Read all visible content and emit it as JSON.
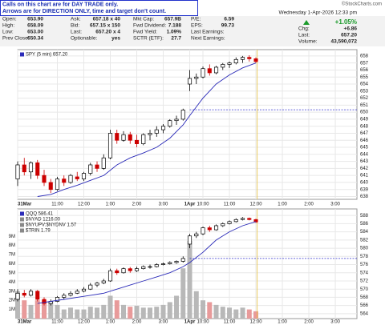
{
  "header": {
    "notice": [
      "Calls on this chart are for DAY TRADE only.",
      "Arrows are for DIRECTION ONLY, time and target don't count."
    ],
    "brand": "©StockCharts.com"
  },
  "quote": {
    "columns": [
      [
        {
          "label": "Open:",
          "value": "653.90"
        },
        {
          "label": "High:",
          "value": "658.09"
        },
        {
          "label": "Low:",
          "value": "653.00"
        },
        {
          "label": "Prev Close:",
          "value": "650.34"
        }
      ],
      [
        {
          "label": "Ask:",
          "value": "657.18 x 40"
        },
        {
          "label": "Bid:",
          "value": "657.15 x 150"
        },
        {
          "label": "Last:",
          "value": "657.20 x 4"
        },
        {
          "label": "Optionable:",
          "value": "yes"
        }
      ],
      [
        {
          "label": "Mkt Cap:",
          "value": "657.9B"
        },
        {
          "label": "Fwd Dividend:",
          "value": "7.188"
        },
        {
          "label": "Fwd Yield:",
          "value": "1.09%"
        },
        {
          "label": "SCTR (ETF):",
          "value": "27.7"
        }
      ],
      [
        {
          "label": "P/E:",
          "value": "6.59"
        },
        {
          "label": "EPS:",
          "value": "99.73"
        },
        {
          "label": "Last Earnings:"
        },
        {
          "label": "Next Earnings:"
        }
      ]
    ],
    "status": {
      "date": "Wednesday 1-Apr-2026 12:33 pm",
      "change_pct": "+1.05%",
      "chg_label": "Chg:",
      "chg": "+6.86",
      "last_label": "Last:",
      "last": "657.20",
      "volume_label": "Volume:",
      "volume": "43,590,072"
    }
  },
  "chart_data": [
    {
      "type": "candlestick",
      "legend": [
        "SPY (5 min) 657.20"
      ],
      "x": [
        0,
        3,
        6,
        9,
        12,
        15,
        18,
        21,
        24,
        27,
        30,
        33,
        36,
        39,
        42,
        45,
        48,
        51,
        54,
        57,
        60,
        63,
        66,
        69,
        72,
        75,
        78,
        81,
        84,
        87,
        90,
        93,
        96,
        99,
        102,
        105,
        108
      ],
      "open": [
        640.5,
        642.5,
        641.5,
        642.8,
        641,
        640,
        639,
        640.5,
        640,
        640.8,
        640.5,
        641.3,
        642.5,
        642,
        643.5,
        647,
        646,
        646.8,
        646,
        645.5,
        646.8,
        647,
        647.5,
        648,
        648.8,
        649,
        654,
        654.8,
        655,
        656.2,
        655.6,
        656.4,
        656.8,
        657,
        657.5,
        657.8,
        657.6
      ],
      "high": [
        643,
        643.5,
        643,
        643.2,
        641.8,
        640.5,
        640.8,
        641,
        641.2,
        641.5,
        641.5,
        642.8,
        643,
        644,
        647.5,
        647.5,
        647.3,
        647.2,
        646.8,
        647,
        647.5,
        648,
        648.3,
        649,
        649.5,
        650.5,
        656,
        655.5,
        656.5,
        656.8,
        656.6,
        657,
        657.2,
        657.8,
        658,
        658.1,
        657.8
      ],
      "low": [
        639.5,
        641,
        640.5,
        640.5,
        639.5,
        638.5,
        638.8,
        639.5,
        639.8,
        640.2,
        640.2,
        641,
        641.5,
        641.8,
        643.3,
        645.5,
        645.8,
        645.5,
        645,
        645.3,
        646,
        646.5,
        647,
        647.8,
        648.2,
        648.8,
        653,
        654,
        654.8,
        655.2,
        655.4,
        656,
        656.3,
        656.8,
        657,
        657.2,
        657
      ],
      "close": [
        642.5,
        641.5,
        642.8,
        641,
        640,
        639,
        640.5,
        640,
        641,
        640.5,
        641.3,
        642.5,
        642,
        643.5,
        647,
        646,
        646.8,
        646,
        645.5,
        646.8,
        647,
        647.5,
        648,
        648.8,
        649,
        650.3,
        654.8,
        655,
        656.2,
        655.6,
        656.4,
        656.8,
        657,
        657.5,
        657.8,
        657.6,
        657.2
      ],
      "up_color": "#000000",
      "down_color": "#cc0000",
      "moving_average": {
        "color": "#2b2bb8",
        "x": [
          9,
          15,
          21,
          27,
          33,
          39,
          45,
          51,
          57,
          63,
          69,
          75,
          78,
          84,
          90,
          96,
          102,
          108
        ],
        "values": [
          638,
          638.3,
          639,
          639.6,
          640.3,
          641,
          642.5,
          643.5,
          644.2,
          645,
          646.3,
          648.2,
          649.5,
          652,
          654,
          655.3,
          656.3,
          657
        ]
      },
      "reference_line": {
        "value": 650.34,
        "x_start": 78,
        "color": "#3333cc"
      },
      "marker_x": 108.6,
      "marker_color": "#e8c440",
      "xlim": [
        0,
        153.8
      ],
      "xticks": [
        {
          "value": 0,
          "label": "31Mar"
        },
        {
          "value": 18,
          "label": "11:00"
        },
        {
          "value": 30,
          "label": "12:00"
        },
        {
          "value": 42,
          "label": "1:00"
        },
        {
          "value": 54,
          "label": "2:00"
        },
        {
          "value": 66,
          "label": "3:00"
        },
        {
          "value": 78,
          "label": "1Apr"
        },
        {
          "value": 84,
          "label": "10:00"
        },
        {
          "value": 96,
          "label": "11:00"
        },
        {
          "value": 108,
          "label": "12:00"
        },
        {
          "value": 120,
          "label": "1:00"
        },
        {
          "value": 132,
          "label": "2:00"
        },
        {
          "value": 144,
          "label": "3:00"
        }
      ],
      "ylim": [
        637.6,
        658.9
      ],
      "yticks": [
        638,
        639,
        640,
        641,
        642,
        643,
        644,
        645,
        646,
        647,
        648,
        649,
        650,
        651,
        652,
        653,
        654,
        655,
        656,
        657,
        658
      ],
      "grid": true
    },
    {
      "type": "candlestick",
      "legend": [
        "QQQ 586.41",
        "$NYAD 1216.00",
        "$NYUPV:$NYDNV 1.57",
        "$TRIN 1.79"
      ],
      "x": [
        0,
        3,
        6,
        9,
        12,
        15,
        18,
        21,
        24,
        27,
        30,
        33,
        36,
        39,
        42,
        45,
        48,
        51,
        54,
        57,
        60,
        63,
        66,
        69,
        72,
        75,
        78,
        81,
        84,
        87,
        90,
        93,
        96,
        99,
        102,
        105,
        108
      ],
      "open": [
        567.5,
        569,
        568.5,
        569.5,
        567.5,
        566.5,
        567,
        568,
        568.5,
        569,
        569.5,
        570,
        571,
        571.5,
        572,
        574.5,
        574,
        575,
        574.5,
        575,
        575.5,
        575.5,
        576,
        576.2,
        576.5,
        576.8,
        581,
        583,
        583.5,
        585,
        584.5,
        585.5,
        586,
        586.5,
        587,
        587.3,
        587
      ],
      "high": [
        570,
        569.8,
        570,
        569.8,
        568,
        567.5,
        568.3,
        569,
        569.5,
        570,
        570.5,
        571.5,
        571.8,
        572.5,
        575,
        575,
        575.3,
        575.4,
        575.5,
        575.8,
        576,
        576.3,
        576.5,
        576.8,
        577,
        578,
        583.5,
        584,
        585.3,
        585.5,
        585.8,
        586.3,
        586.8,
        587.3,
        587.6,
        587.5,
        587.2
      ],
      "low": [
        567,
        568,
        568.2,
        567,
        566,
        566,
        566.8,
        567.5,
        568.2,
        568.8,
        569.2,
        569.8,
        570.5,
        571.2,
        571.8,
        573.5,
        573.8,
        574,
        574.2,
        574.8,
        575,
        575.3,
        575.8,
        576,
        576.2,
        576.5,
        580,
        582.5,
        583.2,
        584,
        584.3,
        585.2,
        585.8,
        586.3,
        586.8,
        586.8,
        586.2
      ],
      "close": [
        569,
        568.5,
        569.5,
        567.5,
        566.5,
        567,
        568,
        568.5,
        569,
        569.5,
        570,
        571,
        571.5,
        572,
        574.5,
        574,
        575,
        574.5,
        575,
        575.5,
        575.5,
        576,
        576.2,
        576.5,
        576.8,
        577.5,
        583,
        583.5,
        585,
        584.5,
        585.5,
        586,
        586.5,
        587,
        587.3,
        587,
        586.4
      ],
      "up_color": "#000000",
      "down_color": "#cc0000",
      "moving_average": {
        "color": "#2b2bb8",
        "x": [
          9,
          15,
          21,
          27,
          33,
          39,
          45,
          51,
          57,
          63,
          69,
          75,
          78,
          84,
          90,
          96,
          102,
          108
        ],
        "values": [
          566.5,
          567,
          567.5,
          568,
          568.5,
          569,
          570,
          571,
          572,
          573,
          574,
          575.5,
          576.5,
          579,
          582,
          584,
          585.5,
          586.5
        ]
      },
      "volume": {
        "axis": "y2",
        "up_color": "#b8b8b8",
        "down_color": "#e89a9a",
        "values": [
          3,
          2,
          1.5,
          2,
          2,
          1.8,
          1.5,
          1,
          1.2,
          1,
          1,
          1.3,
          1.2,
          1.5,
          2.5,
          2,
          1.5,
          1.3,
          1.4,
          1.2,
          1.2,
          1.3,
          1.5,
          1.8,
          2.5,
          5.5,
          8.5,
          3,
          2,
          1.8,
          1.5,
          1.3,
          1.2,
          1,
          1.2,
          1,
          0.8
        ]
      },
      "reference_line": {
        "value": 577.5,
        "x_start": 78,
        "color": "#3333cc"
      },
      "marker_x": 108.6,
      "marker_color": "#e8c440",
      "xlim": [
        0,
        153.8
      ],
      "xticks": [
        {
          "value": 0,
          "label": "31Mar"
        },
        {
          "value": 18,
          "label": "11:00"
        },
        {
          "value": 30,
          "label": "12:00"
        },
        {
          "value": 42,
          "label": "1:00"
        },
        {
          "value": 54,
          "label": "2:00"
        },
        {
          "value": 66,
          "label": "3:00"
        },
        {
          "value": 78,
          "label": "1Apr"
        },
        {
          "value": 84,
          "label": "10:00"
        },
        {
          "value": 96,
          "label": "11:00"
        },
        {
          "value": 108,
          "label": "12:00"
        },
        {
          "value": 120,
          "label": "1:00"
        },
        {
          "value": 132,
          "label": "2:00"
        },
        {
          "value": 144,
          "label": "3:00"
        }
      ],
      "ylim": [
        562.8,
        589.6
      ],
      "yticks": [
        564,
        566,
        568,
        570,
        572,
        574,
        576,
        578,
        580,
        582,
        584,
        586,
        588
      ],
      "y2lim": [
        0,
        12
      ],
      "y2ticks": [
        {
          "value": 1,
          "label": "1M"
        },
        {
          "value": 2,
          "label": "2M"
        },
        {
          "value": 3,
          "label": "3M"
        },
        {
          "value": 4,
          "label": "4M"
        },
        {
          "value": 5,
          "label": "5M"
        },
        {
          "value": 6,
          "label": "6M"
        },
        {
          "value": 7,
          "label": "7M"
        },
        {
          "value": 8,
          "label": "8M"
        },
        {
          "value": 9,
          "label": "9M"
        }
      ],
      "grid": true
    }
  ]
}
